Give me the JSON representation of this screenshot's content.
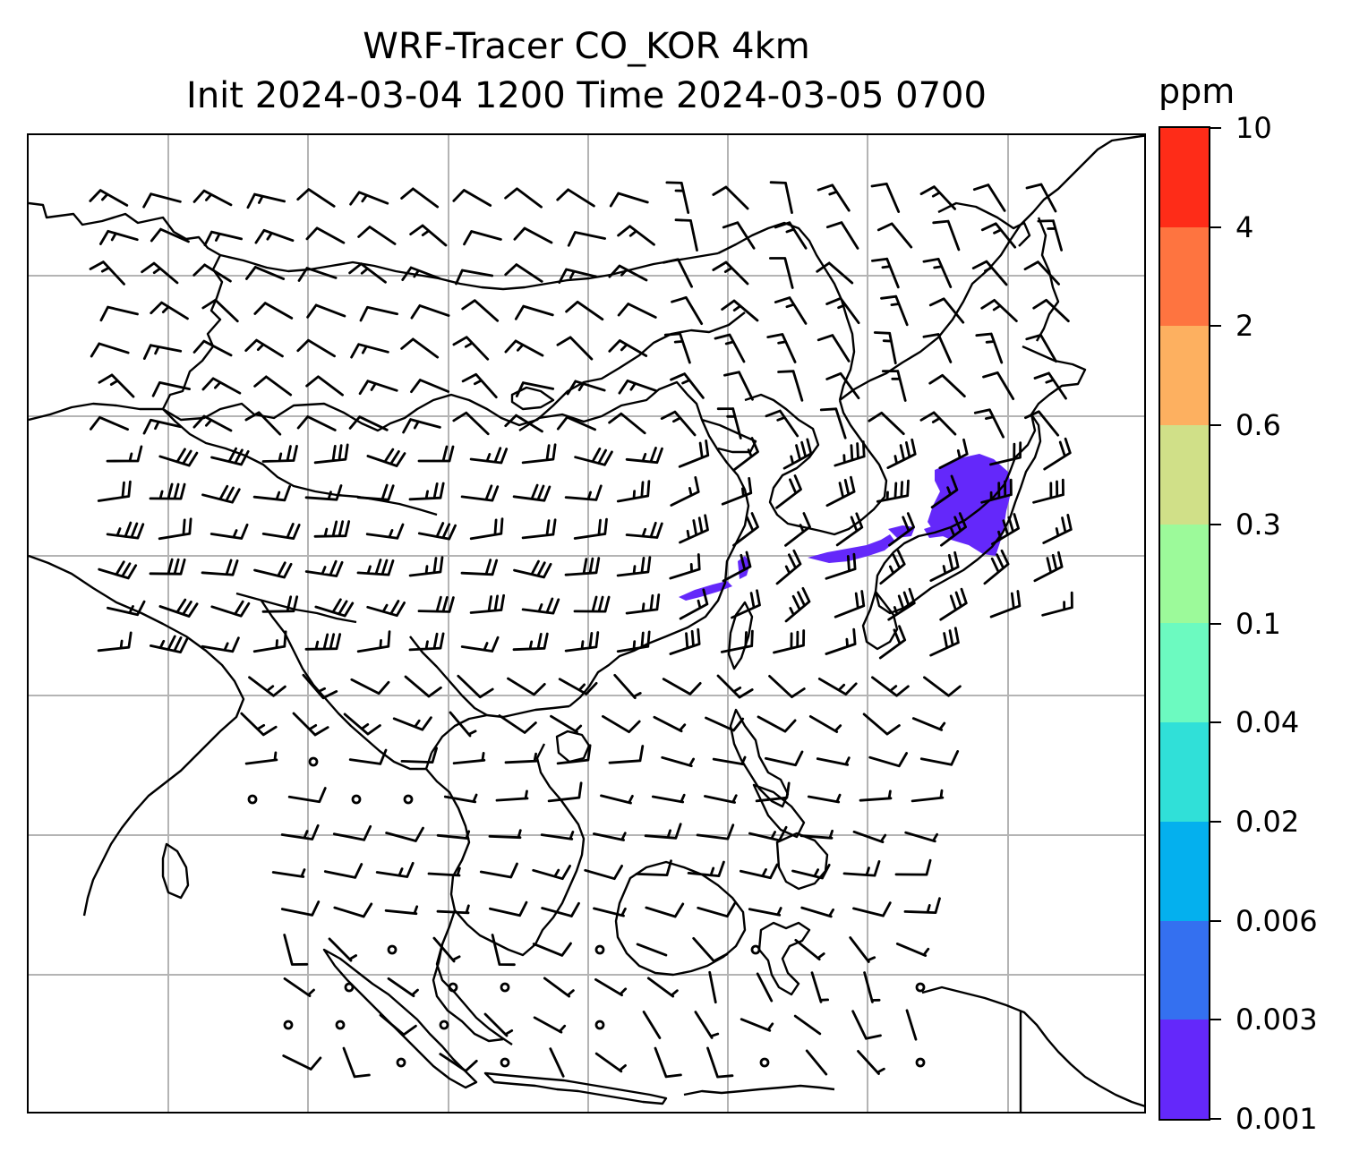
{
  "title": {
    "line1": "WRF-Tracer CO_KOR 4km",
    "line2": "Init 2024-03-04 1200 Time 2024-03-05 0700"
  },
  "colorbar": {
    "unit": "ppm",
    "levels": [
      "0.001",
      "0.003",
      "0.006",
      "0.02",
      "0.04",
      "0.1",
      "0.3",
      "0.6",
      "2",
      "4",
      "10"
    ],
    "colors": [
      "#6428fa",
      "#3470f0",
      "#04b0ee",
      "#30e0d8",
      "#6cfac0",
      "#9cfa9a",
      "#d0e088",
      "#fdb060",
      "#fe7440",
      "#fe2c18"
    ]
  },
  "map": {
    "gridlines": "on",
    "tracer_color": "#6428fa",
    "coast_color": "#000000",
    "grid_color": "#b4b4b4"
  }
}
